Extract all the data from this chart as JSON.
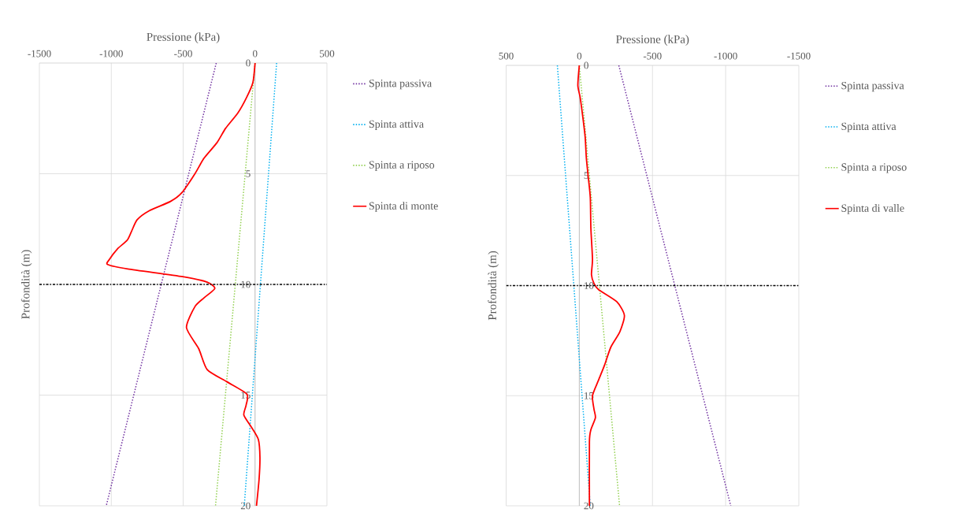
{
  "chart_data": [
    {
      "type": "line",
      "xlabel": "Pressione (kPa)",
      "ylabel": "Profondità (m)",
      "xlim": [
        -1500,
        500
      ],
      "ylim": [
        20,
        0
      ],
      "xticks": [
        -1500,
        -1000,
        -500,
        0,
        500
      ],
      "yticks": [
        0,
        5,
        10,
        15,
        20
      ],
      "grid": true,
      "legend": "right",
      "ref_lines": [
        {
          "axis": "y",
          "value": 10,
          "color": "#000000",
          "line_style": "dashdot"
        }
      ],
      "series": [
        {
          "name": "Spinta passiva",
          "color": "#7030a0",
          "line_style": "dotted",
          "x": [
            -270,
            -1035
          ],
          "values": [
            0,
            20
          ]
        },
        {
          "name": "Spinta attiva",
          "color": "#00b0f0",
          "line_style": "dotted",
          "x": [
            150,
            -75
          ],
          "values": [
            0,
            20
          ]
        },
        {
          "name": "Spinta a riposo",
          "color": "#92d050",
          "line_style": "dotted",
          "x": [
            0,
            -275
          ],
          "values": [
            0,
            20
          ]
        },
        {
          "name": "Spinta di monte",
          "color": "#ff0000",
          "line_style": "solid",
          "x": [
            0,
            -15,
            -60,
            -120,
            -205,
            -265,
            -355,
            -418,
            -507,
            -588,
            -736,
            -820,
            -859,
            -889,
            -958,
            -1016,
            -1025,
            -885,
            -503,
            -333,
            -280,
            -354,
            -418,
            -477,
            -392,
            -333,
            -195,
            -57,
            -62,
            -78,
            -25,
            23,
            34,
            28,
            10
          ],
          "values": [
            0,
            0.88,
            1.57,
            2.26,
            2.95,
            3.6,
            4.3,
            5,
            5.84,
            6.25,
            6.67,
            7.08,
            7.6,
            8.0,
            8.4,
            8.9,
            9.1,
            9.3,
            9.65,
            9.9,
            10.18,
            10.6,
            11.0,
            11.95,
            12.9,
            13.85,
            14.4,
            14.95,
            15.45,
            15.9,
            16.45,
            17.0,
            17.8,
            18.8,
            20
          ]
        }
      ]
    },
    {
      "type": "line",
      "xlabel": "Pressione (kPa)",
      "ylabel": "Profondità (m)",
      "xlim": [
        500,
        -1500
      ],
      "ylim": [
        20,
        0
      ],
      "xticks": [
        500,
        0,
        -500,
        -1000,
        -1500
      ],
      "yticks": [
        0,
        5,
        10,
        15,
        20
      ],
      "grid": true,
      "legend": "right",
      "ref_lines": [
        {
          "axis": "y",
          "value": 10,
          "color": "#000000",
          "line_style": "dashdot"
        }
      ],
      "series": [
        {
          "name": "Spinta passiva",
          "color": "#7030a0",
          "line_style": "dotted",
          "x": [
            -270,
            -1035
          ],
          "values": [
            0,
            20
          ]
        },
        {
          "name": "Spinta attiva",
          "color": "#00b0f0",
          "line_style": "dotted",
          "x": [
            150,
            -75
          ],
          "values": [
            0,
            20
          ]
        },
        {
          "name": "Spinta a riposo",
          "color": "#92d050",
          "line_style": "dotted",
          "x": [
            0,
            -275
          ],
          "values": [
            0,
            20
          ]
        },
        {
          "name": "Spinta di valle",
          "color": "#ff0000",
          "line_style": "solid",
          "x": [
            0,
            10,
            -6,
            -23,
            -40,
            -48,
            -60,
            -75,
            -79,
            -90,
            -83,
            -100,
            -131,
            -256,
            -308,
            -277,
            -215,
            -173,
            -131,
            -90,
            -100,
            -110,
            -79,
            -69,
            -69
          ],
          "values": [
            0,
            0.91,
            1.46,
            2.3,
            3.26,
            4.2,
            5,
            6.0,
            7.4,
            8.8,
            9.5,
            9.9,
            10.18,
            10.73,
            11.35,
            12.1,
            12.8,
            13.6,
            14.3,
            15,
            15.6,
            16.0,
            16.55,
            17.1,
            20
          ]
        }
      ]
    }
  ]
}
